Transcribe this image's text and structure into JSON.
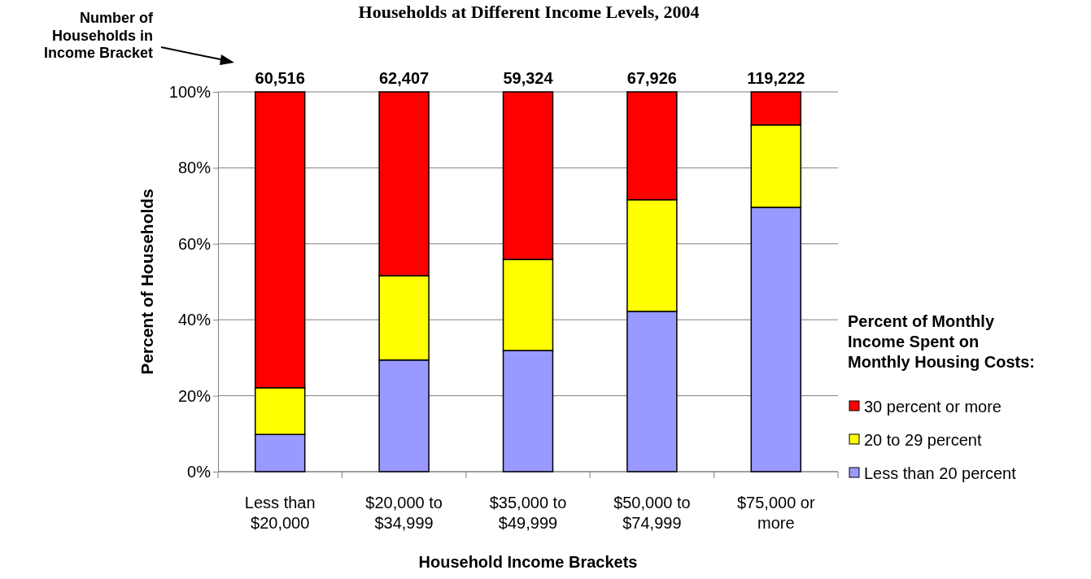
{
  "chart_data": {
    "type": "bar",
    "title": "Households at Different Income Levels, 2004",
    "xlabel": "Household Income Brackets",
    "ylabel": "Percent of Households",
    "legend_title": "Percent of Monthly Income Spent on Monthly Housing Costs:",
    "categories": [
      "Less than $20,000",
      "$20,000 to $34,999",
      "$35,000 to $49,999",
      "$50,000 to $74,999",
      "$75,000 or more"
    ],
    "stacked": true,
    "series": [
      {
        "name": "Less than 20 percent",
        "color": "#9999ff",
        "values": [
          9.8,
          29.4,
          31.9,
          42.2,
          69.6
        ]
      },
      {
        "name": "20 to 29 percent",
        "color": "#ffff00",
        "values": [
          12.3,
          22.2,
          24.0,
          29.4,
          21.7
        ]
      },
      {
        "name": "30 percent or more",
        "color": "#ff0000",
        "values": [
          77.9,
          48.4,
          44.1,
          28.4,
          8.7
        ]
      }
    ],
    "annotations": [
      "Number of Households in Income Bracket",
      {
        "text": "60,516",
        "x": "Less than $20,000",
        "y": 100
      },
      {
        "text": "62,407",
        "x": "$20,000 to $34,999",
        "y": 100
      },
      {
        "text": "59,324",
        "x": "$35,000 to $49,999",
        "y": 100
      },
      {
        "text": "67,926",
        "x": "$50,000 to $74,999",
        "y": 100
      },
      {
        "text": "119,222",
        "x": "$75,000 or more",
        "y": 100
      }
    ],
    "ylim": [
      0,
      100
    ],
    "yticks": [
      {
        "value": 0,
        "label": "0%"
      },
      {
        "value": 20,
        "label": "20%"
      },
      {
        "value": 40,
        "label": "40%"
      },
      {
        "value": 60,
        "label": "60%"
      },
      {
        "value": 80,
        "label": "80%"
      },
      {
        "value": 100,
        "label": "100%"
      }
    ],
    "grid": "y",
    "legend": "right"
  }
}
